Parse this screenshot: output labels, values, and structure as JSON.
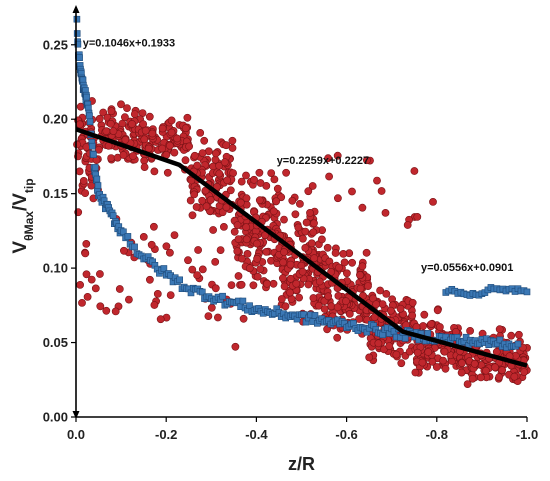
{
  "chart_data": {
    "type": "scatter",
    "xlabel": "z/R",
    "ylabel": {
      "base": "V",
      "sub1": "θMax",
      "mid": "/V",
      "sub2": "tip"
    },
    "xlim": [
      0.0,
      -1.0
    ],
    "ylim": [
      0.0,
      0.27
    ],
    "x_ticks": [
      {
        "value": 0.0,
        "label": "0.0"
      },
      {
        "value": -0.2,
        "label": "-0.2"
      },
      {
        "value": -0.4,
        "label": "-0.4"
      },
      {
        "value": -0.6,
        "label": "-0.6"
      },
      {
        "value": -0.8,
        "label": "-0.8"
      },
      {
        "value": -1.0,
        "label": "-1.0"
      }
    ],
    "y_ticks": [
      {
        "value": 0.0,
        "label": "0.00"
      },
      {
        "value": 0.05,
        "label": "0.05"
      },
      {
        "value": 0.1,
        "label": "0.10"
      },
      {
        "value": 0.15,
        "label": "0.15"
      },
      {
        "value": 0.2,
        "label": "0.20"
      },
      {
        "value": 0.25,
        "label": "0.25"
      }
    ],
    "grid": false,
    "series": [
      {
        "kind": "scatter",
        "marker": "circle",
        "color": "#c0272d",
        "stroke": "#7a1216",
        "clusters": [
          {
            "x_range": [
              0.0,
              -0.05
            ],
            "y_center": 0.175,
            "y_spread": 0.05,
            "count": 60
          },
          {
            "x_range": [
              -0.05,
              -0.15
            ],
            "y_center": 0.19,
            "y_spread": 0.025,
            "count": 90
          },
          {
            "x_range": [
              -0.15,
              -0.25
            ],
            "y_center": 0.185,
            "y_spread": 0.025,
            "count": 90
          },
          {
            "x_range": [
              -0.25,
              -0.35
            ],
            "y_center": 0.16,
            "y_spread": 0.04,
            "count": 110
          },
          {
            "x_range": [
              -0.35,
              -0.45
            ],
            "y_center": 0.125,
            "y_spread": 0.05,
            "count": 130
          },
          {
            "x_range": [
              -0.45,
              -0.55
            ],
            "y_center": 0.1,
            "y_spread": 0.05,
            "count": 140
          },
          {
            "x_range": [
              -0.55,
              -0.65
            ],
            "y_center": 0.08,
            "y_spread": 0.045,
            "count": 130
          },
          {
            "x_range": [
              -0.65,
              -0.75
            ],
            "y_center": 0.06,
            "y_spread": 0.035,
            "count": 120
          },
          {
            "x_range": [
              -0.75,
              -0.85
            ],
            "y_center": 0.048,
            "y_spread": 0.028,
            "count": 110
          },
          {
            "x_range": [
              -0.85,
              -1.0
            ],
            "y_center": 0.04,
            "y_spread": 0.025,
            "count": 140
          },
          {
            "x_range": [
              0.0,
              -0.4
            ],
            "y_center": 0.09,
            "y_spread": 0.06,
            "count": 60
          },
          {
            "x_range": [
              -0.4,
              -0.8
            ],
            "y_center": 0.15,
            "y_spread": 0.04,
            "count": 30
          }
        ]
      },
      {
        "kind": "scatter",
        "marker": "square",
        "color": "#3b78b5",
        "stroke": "#1d4a7a",
        "points": [
          [
            -0.002,
            0.265
          ],
          [
            -0.005,
            0.243
          ],
          [
            -0.008,
            0.24
          ],
          [
            -0.01,
            0.232
          ],
          [
            -0.012,
            0.228
          ],
          [
            -0.015,
            0.225
          ],
          [
            -0.017,
            0.22
          ],
          [
            -0.02,
            0.218
          ],
          [
            -0.022,
            0.215
          ],
          [
            -0.025,
            0.21
          ],
          [
            -0.03,
            0.2
          ],
          [
            -0.035,
            0.185
          ],
          [
            -0.04,
            0.17
          ],
          [
            -0.045,
            0.16
          ],
          [
            -0.05,
            0.15
          ],
          [
            -0.06,
            0.145
          ],
          [
            -0.07,
            0.14
          ],
          [
            -0.08,
            0.135
          ],
          [
            -0.09,
            0.13
          ],
          [
            -0.1,
            0.125
          ],
          [
            -0.12,
            0.118
          ],
          [
            -0.14,
            0.11
          ],
          [
            -0.16,
            0.105
          ],
          [
            -0.18,
            0.1
          ],
          [
            -0.2,
            0.096
          ],
          [
            -0.22,
            0.092
          ],
          [
            -0.24,
            0.088
          ],
          [
            -0.26,
            0.085
          ],
          [
            -0.28,
            0.083
          ],
          [
            -0.3,
            0.081
          ],
          [
            -0.32,
            0.079
          ],
          [
            -0.34,
            0.077
          ],
          [
            -0.36,
            0.076
          ],
          [
            -0.38,
            0.074
          ],
          [
            -0.4,
            0.072
          ],
          [
            -0.42,
            0.071
          ],
          [
            -0.44,
            0.07
          ],
          [
            -0.46,
            0.069
          ],
          [
            -0.48,
            0.068
          ],
          [
            -0.5,
            0.067
          ],
          [
            -0.52,
            0.066
          ],
          [
            -0.54,
            0.065
          ],
          [
            -0.56,
            0.064
          ],
          [
            -0.58,
            0.063
          ],
          [
            -0.6,
            0.062
          ],
          [
            -0.62,
            0.061
          ],
          [
            -0.64,
            0.06
          ],
          [
            -0.66,
            0.059
          ],
          [
            -0.68,
            0.058
          ],
          [
            -0.7,
            0.057
          ],
          [
            -0.72,
            0.056
          ],
          [
            -0.74,
            0.055
          ],
          [
            -0.76,
            0.054
          ],
          [
            -0.78,
            0.054
          ],
          [
            -0.8,
            0.053
          ],
          [
            -0.82,
            0.052
          ],
          [
            -0.84,
            0.052
          ],
          [
            -0.86,
            0.051
          ],
          [
            -0.88,
            0.051
          ],
          [
            -0.9,
            0.05
          ],
          [
            -0.92,
            0.05
          ],
          [
            -0.94,
            0.05
          ],
          [
            -0.96,
            0.049
          ],
          [
            -0.98,
            0.049
          ],
          [
            -0.82,
            0.085
          ],
          [
            -0.84,
            0.084
          ],
          [
            -0.86,
            0.083
          ],
          [
            -0.88,
            0.083
          ],
          [
            -0.9,
            0.082
          ],
          [
            -0.92,
            0.086
          ],
          [
            -0.94,
            0.085
          ],
          [
            -0.96,
            0.086
          ],
          [
            -0.98,
            0.085
          ],
          [
            -1.0,
            0.084
          ]
        ]
      },
      {
        "kind": "line",
        "name": "",
        "color": "#000000",
        "points": [
          [
            0.0,
            0.1933
          ],
          [
            -0.2292,
            0.1693
          ],
          [
            -0.7251,
            0.0573
          ],
          [
            -1.0,
            0.0345
          ]
        ]
      }
    ],
    "annotations": [
      {
        "text": "y=0.1046x+0.1933",
        "x": -0.015,
        "y": 0.249
      },
      {
        "text": "y=0.2259x+0.2227",
        "x": -0.445,
        "y": 0.17
      },
      {
        "text": "y=0.0556x+0.0901",
        "x": -0.765,
        "y": 0.098
      }
    ]
  }
}
